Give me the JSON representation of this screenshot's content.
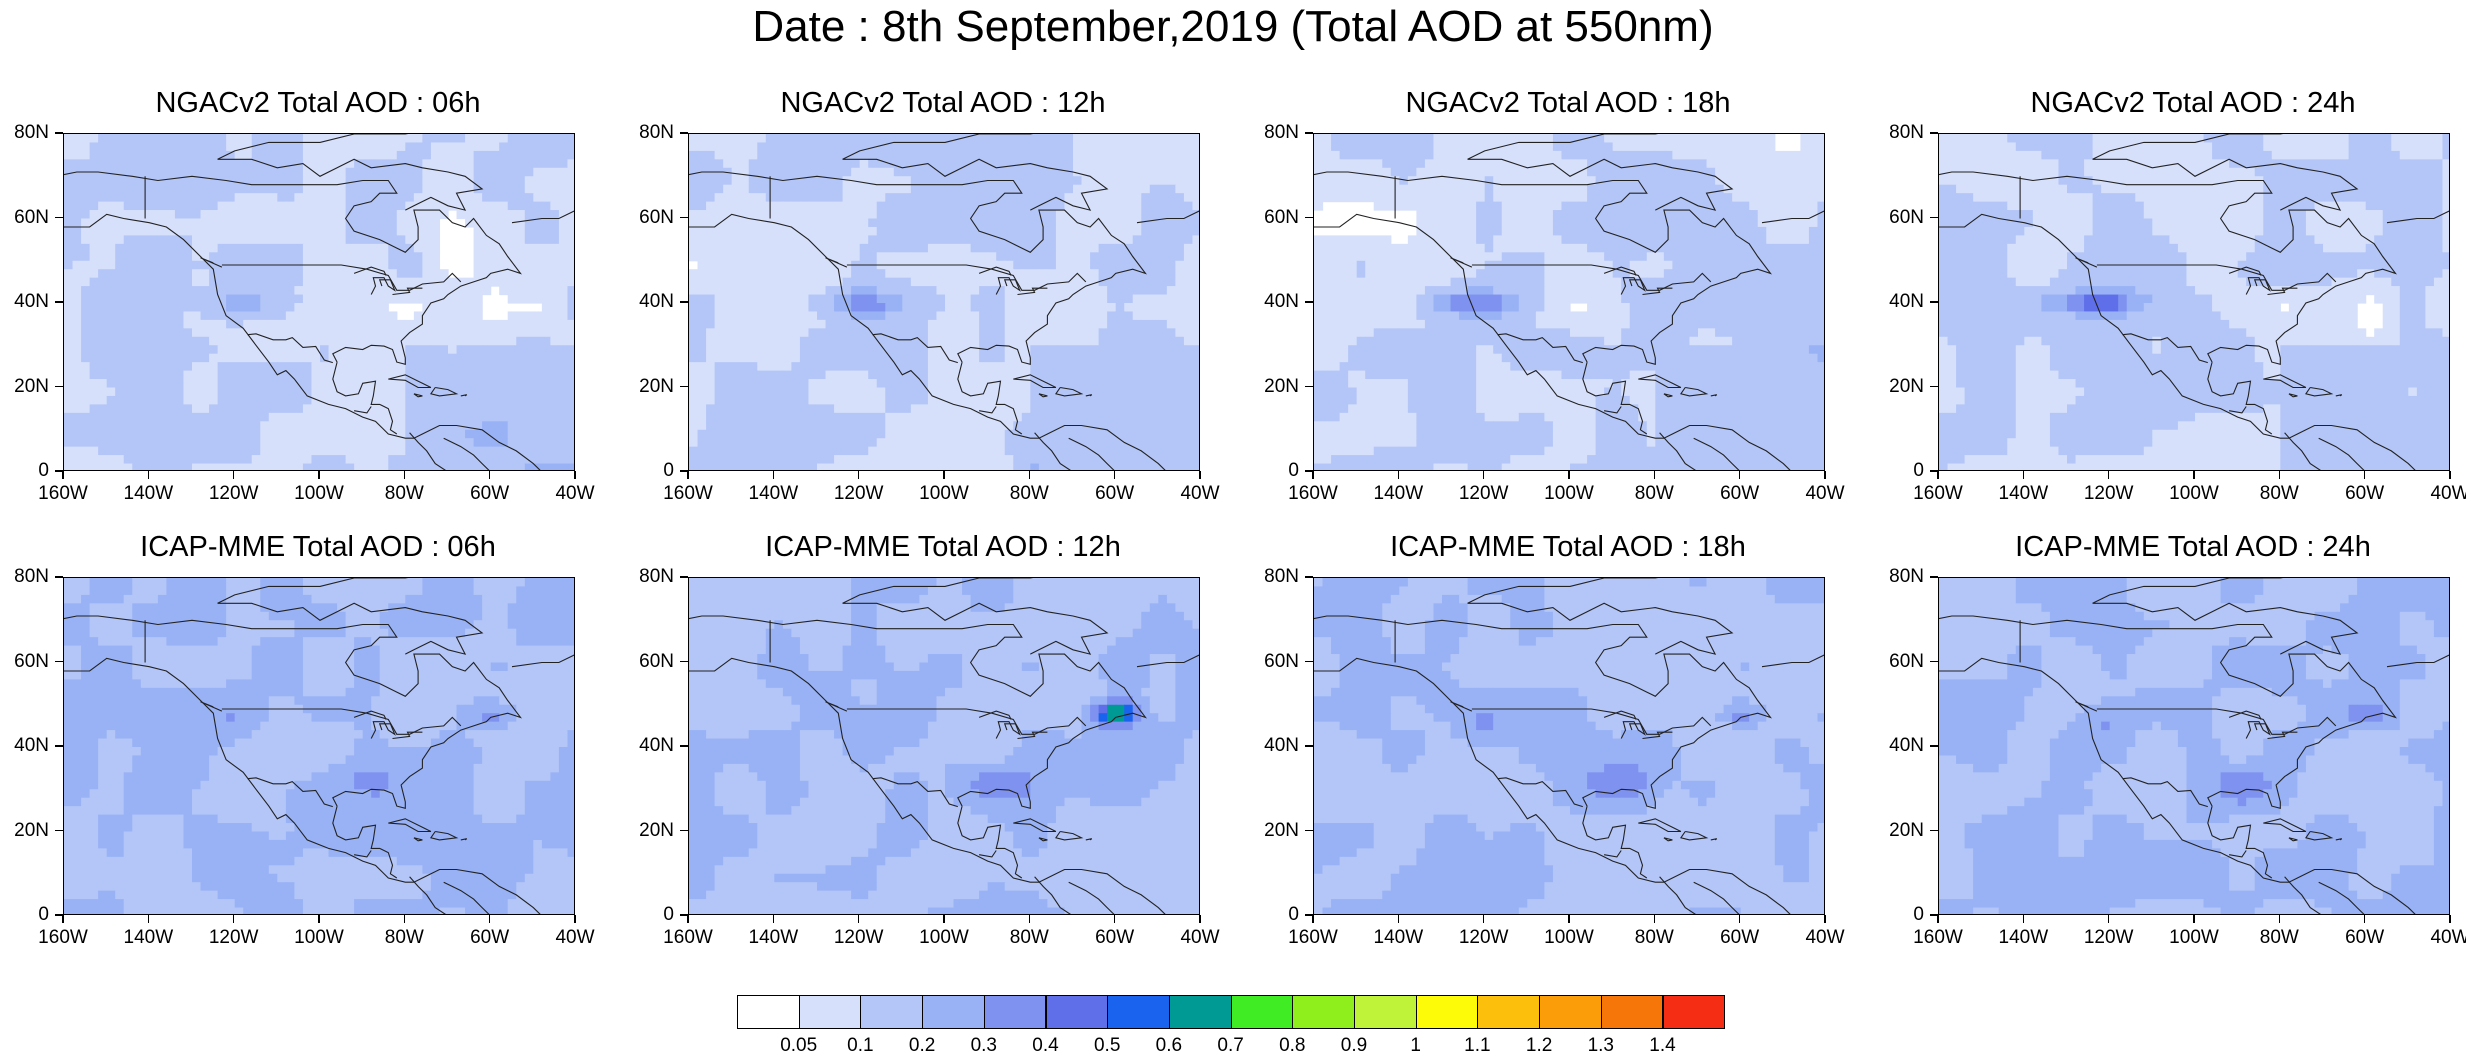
{
  "title": "Date : 8th September,2019 (Total AOD at 550nm)",
  "chart_data": {
    "type": "heatmap",
    "title": "Date : 8th September,2019 (Total AOD at 550nm)",
    "variable": "Total AOD at 550nm",
    "date": "8th September,2019",
    "x_ticks": [
      "160W",
      "140W",
      "120W",
      "100W",
      "80W",
      "60W",
      "40W"
    ],
    "x_range": [
      -160,
      -40
    ],
    "y_ticks": [
      "0",
      "20N",
      "40N",
      "60N",
      "80N"
    ],
    "y_range": [
      0,
      80
    ],
    "panels": [
      {
        "title": "NGACv2 Total AOD : 06h",
        "model": "NGACv2",
        "hour": "06h",
        "typical_aod_range": [
          0.05,
          0.3
        ]
      },
      {
        "title": "NGACv2 Total AOD : 12h",
        "model": "NGACv2",
        "hour": "12h",
        "typical_aod_range": [
          0.05,
          0.3
        ]
      },
      {
        "title": "NGACv2 Total AOD : 18h",
        "model": "NGACv2",
        "hour": "18h",
        "typical_aod_range": [
          0.05,
          0.4
        ]
      },
      {
        "title": "NGACv2 Total AOD : 24h",
        "model": "NGACv2",
        "hour": "24h",
        "typical_aod_range": [
          0.05,
          0.5
        ]
      },
      {
        "title": "ICAP-MME Total AOD : 06h",
        "model": "ICAP-MME",
        "hour": "06h",
        "typical_aod_range": [
          0.1,
          0.5
        ]
      },
      {
        "title": "ICAP-MME Total AOD : 12h",
        "model": "ICAP-MME",
        "hour": "12h",
        "typical_aod_range": [
          0.1,
          0.8
        ]
      },
      {
        "title": "ICAP-MME Total AOD : 18h",
        "model": "ICAP-MME",
        "hour": "18h",
        "typical_aod_range": [
          0.1,
          0.6
        ]
      },
      {
        "title": "ICAP-MME Total AOD : 24h",
        "model": "ICAP-MME",
        "hour": "24h",
        "typical_aod_range": [
          0.1,
          0.5
        ]
      }
    ],
    "colorbar": {
      "labels": [
        "0.05",
        "0.1",
        "0.2",
        "0.3",
        "0.4",
        "0.5",
        "0.6",
        "0.7",
        "0.8",
        "0.9",
        "1",
        "1.1",
        "1.2",
        "1.3",
        "1.4"
      ],
      "colors": [
        "#ffffff",
        "#d6e0fb",
        "#b4c6f7",
        "#98b2f5",
        "#7f92f0",
        "#5f6fe9",
        "#1963ef",
        "#009a95",
        "#40ed24",
        "#8eef1c",
        "#bff339",
        "#fdfb08",
        "#fbbf0c",
        "#fb9c09",
        "#f6760a",
        "#f52d15"
      ]
    }
  }
}
